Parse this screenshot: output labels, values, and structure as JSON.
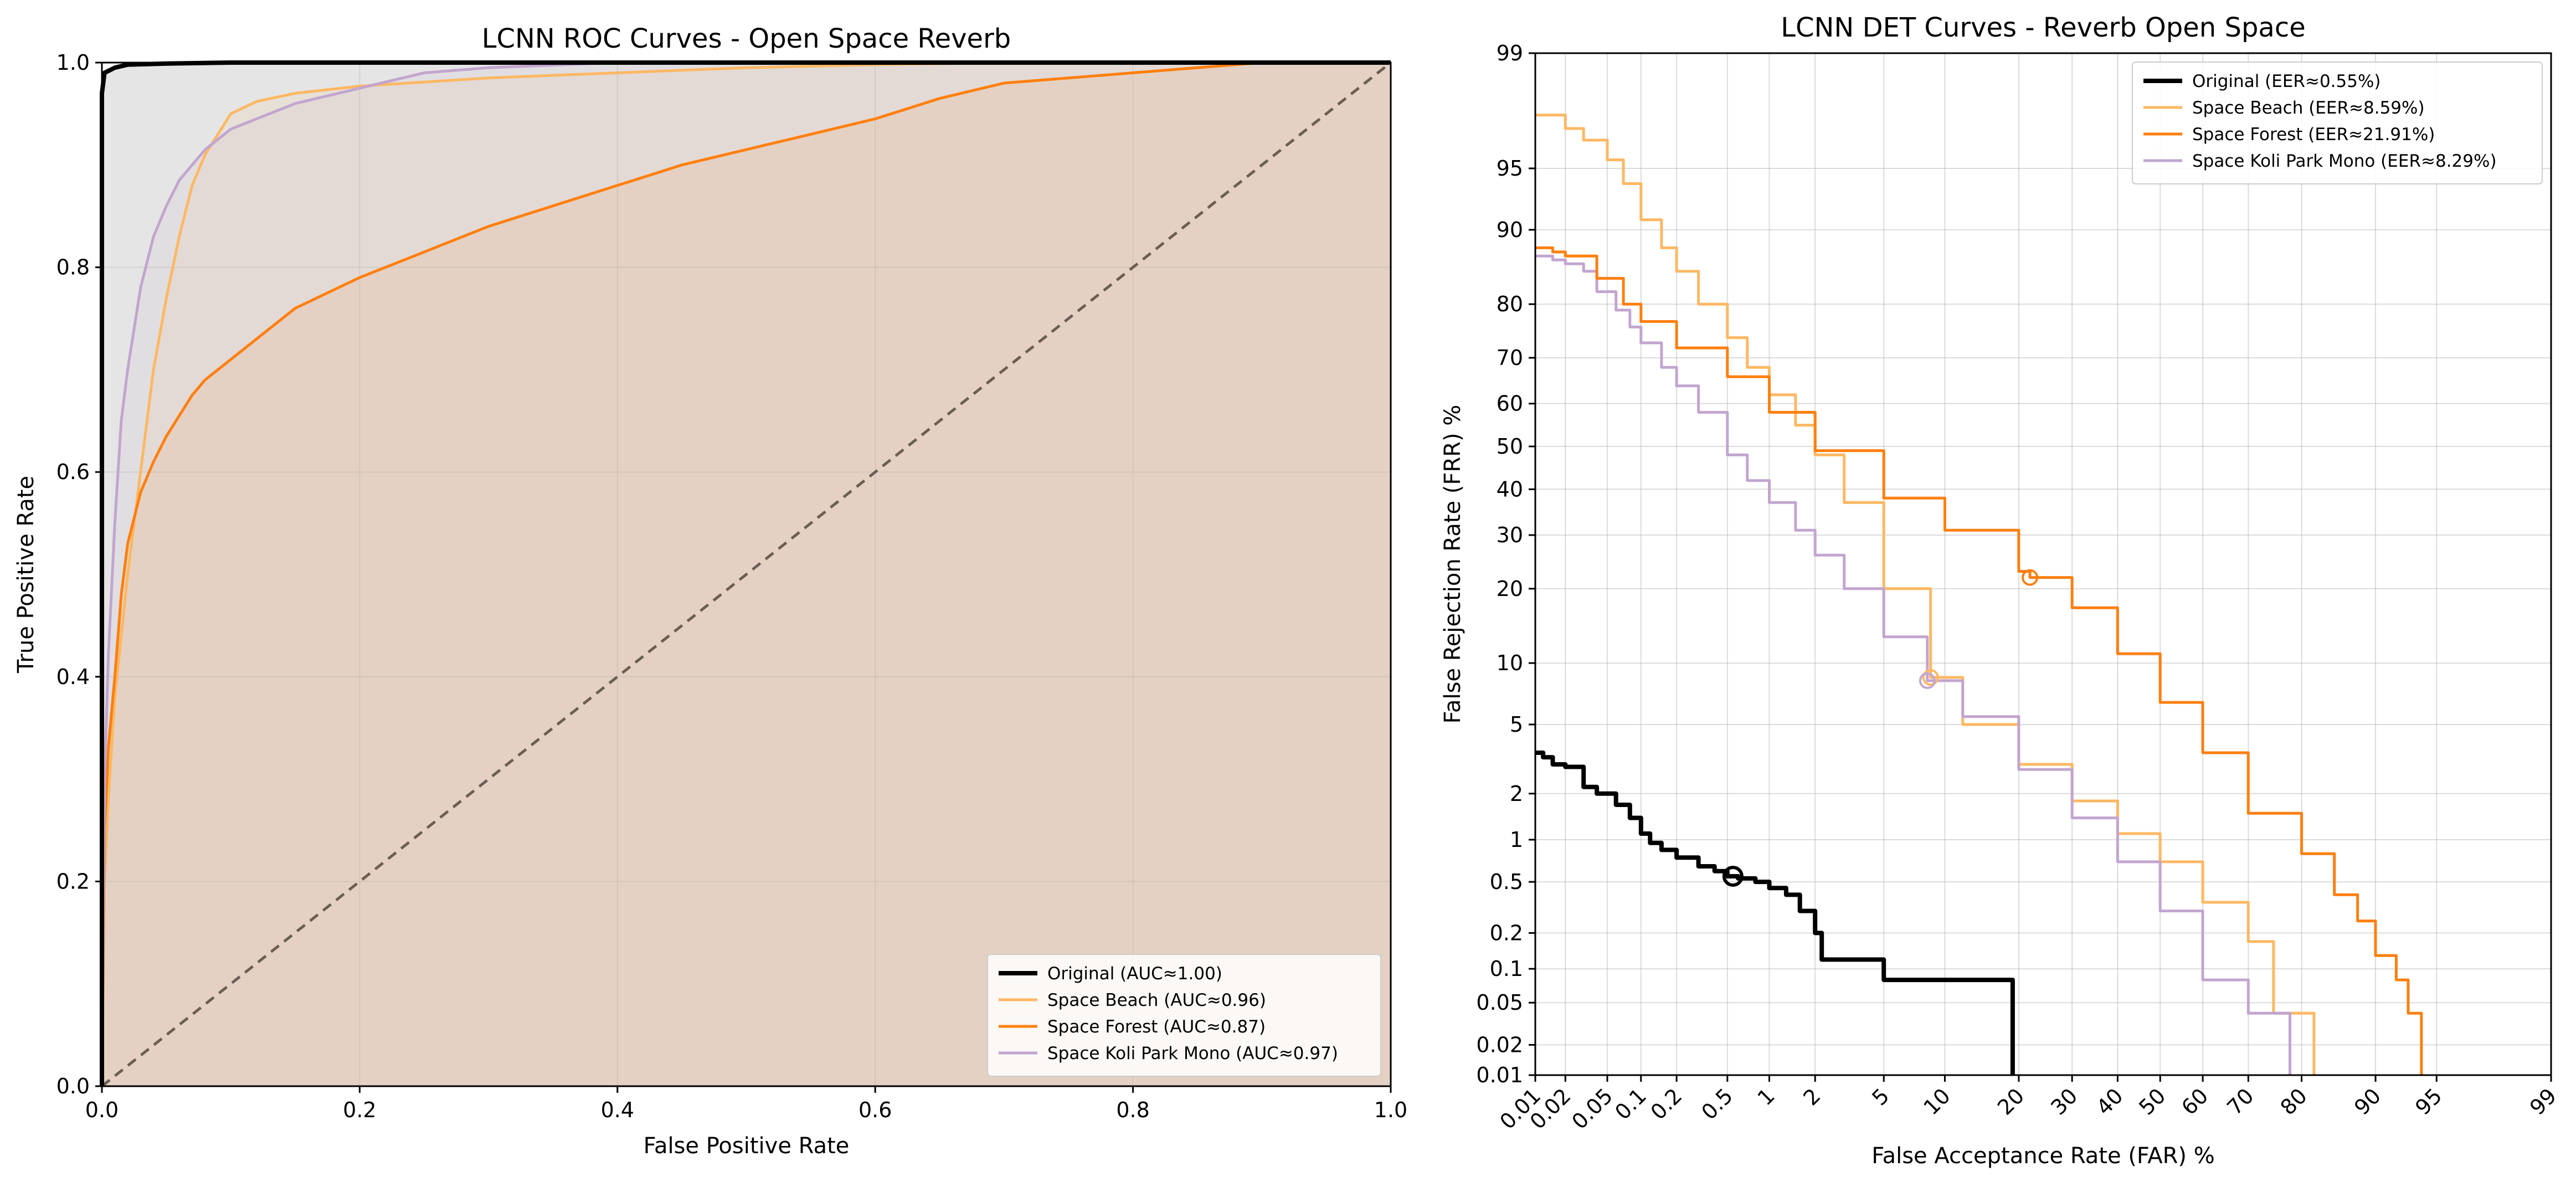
{
  "chart_data": [
    {
      "type": "line",
      "title": "LCNN ROC Curves - Open Space Reverb",
      "xlabel": "False Positive Rate",
      "ylabel": "True Positive Rate",
      "xlim": [
        0,
        1
      ],
      "ylim": [
        0,
        1
      ],
      "xticks": [
        "0.0",
        "0.2",
        "0.4",
        "0.6",
        "0.8",
        "1.0"
      ],
      "yticks": [
        "0.0",
        "0.2",
        "0.4",
        "0.6",
        "0.8",
        "1.0"
      ],
      "grid": true,
      "legend_position": "lower-right",
      "fill_under_curves": true,
      "chance_line": {
        "x": [
          0,
          1
        ],
        "y": [
          0,
          1
        ],
        "color": "#6b5f55",
        "style": "dashed"
      },
      "series": [
        {
          "name": "Original (AUC≈1.00)",
          "color": "#000000",
          "x": [
            0,
            0,
            0.002,
            0.01,
            0.02,
            0.05,
            0.1,
            0.2,
            1
          ],
          "y": [
            0,
            0.97,
            0.99,
            0.995,
            0.998,
            0.999,
            1,
            1,
            1
          ]
        },
        {
          "name": "Space Beach (AUC≈0.96)",
          "color": "#fdb863",
          "x": [
            0,
            0.002,
            0.005,
            0.01,
            0.02,
            0.03,
            0.04,
            0.05,
            0.06,
            0.07,
            0.08,
            0.09,
            0.1,
            0.12,
            0.15,
            0.2,
            0.3,
            0.4,
            0.5,
            0.6,
            0.7,
            1
          ],
          "y": [
            0,
            0.2,
            0.28,
            0.38,
            0.5,
            0.6,
            0.7,
            0.77,
            0.83,
            0.88,
            0.91,
            0.93,
            0.95,
            0.962,
            0.97,
            0.977,
            0.985,
            0.99,
            0.995,
            0.998,
            1,
            1
          ]
        },
        {
          "name": "Space Forest (AUC≈0.87)",
          "color": "#ff7f0e",
          "x": [
            0,
            0.002,
            0.005,
            0.01,
            0.015,
            0.02,
            0.03,
            0.04,
            0.05,
            0.06,
            0.07,
            0.08,
            0.1,
            0.12,
            0.15,
            0.2,
            0.25,
            0.3,
            0.35,
            0.4,
            0.45,
            0.5,
            0.55,
            0.6,
            0.65,
            0.7,
            0.75,
            0.8,
            0.85,
            0.9,
            0.95,
            1
          ],
          "y": [
            0,
            0.25,
            0.33,
            0.4,
            0.48,
            0.53,
            0.58,
            0.61,
            0.635,
            0.655,
            0.675,
            0.69,
            0.71,
            0.73,
            0.76,
            0.79,
            0.815,
            0.84,
            0.86,
            0.88,
            0.9,
            0.915,
            0.93,
            0.945,
            0.965,
            0.98,
            0.985,
            0.99,
            0.995,
            1,
            1,
            1
          ]
        },
        {
          "name": "Space Koli Park Mono (AUC≈0.97)",
          "color": "#c2a5cf",
          "x": [
            0,
            0.002,
            0.005,
            0.01,
            0.015,
            0.02,
            0.03,
            0.04,
            0.05,
            0.06,
            0.07,
            0.08,
            0.1,
            0.12,
            0.15,
            0.2,
            0.25,
            0.3,
            0.4,
            0.5,
            1
          ],
          "y": [
            0,
            0.3,
            0.42,
            0.55,
            0.65,
            0.7,
            0.78,
            0.83,
            0.86,
            0.885,
            0.9,
            0.915,
            0.935,
            0.945,
            0.96,
            0.975,
            0.99,
            0.995,
            1,
            1,
            1
          ]
        }
      ]
    },
    {
      "type": "line",
      "title": "LCNN DET Curves - Reverb Open Space",
      "xlabel": "False Acceptance Rate (FAR) %",
      "ylabel": "False Rejection Rate (FRR) %",
      "scale": "normal-deviate (probit)",
      "xlim": [
        0.01,
        99
      ],
      "ylim": [
        0.01,
        99
      ],
      "xticks": [
        "0.01",
        "0.02",
        "0.05",
        "0.1",
        "0.2",
        "0.5",
        "1",
        "2",
        "5",
        "10",
        "20",
        "30",
        "40",
        "50",
        "60",
        "70",
        "80",
        "90",
        "95",
        "99"
      ],
      "yticks": [
        "0.01",
        "0.02",
        "0.05",
        "0.1",
        "0.2",
        "0.5",
        "1",
        "2",
        "5",
        "10",
        "20",
        "30",
        "40",
        "50",
        "60",
        "70",
        "80",
        "90",
        "95",
        "99"
      ],
      "grid": true,
      "legend_position": "top-right",
      "series": [
        {
          "name": "Original (EER≈0.55%)",
          "color": "#000000",
          "x": [
            0.01,
            0.012,
            0.015,
            0.02,
            0.03,
            0.04,
            0.06,
            0.08,
            0.1,
            0.12,
            0.15,
            0.2,
            0.3,
            0.4,
            0.5,
            0.6,
            0.8,
            1,
            1.3,
            1.6,
            2,
            2.2,
            5,
            10,
            18,
            19,
            19,
            19
          ],
          "y": [
            3.5,
            3.3,
            3.0,
            2.9,
            2.2,
            2.0,
            1.7,
            1.4,
            1.1,
            0.95,
            0.85,
            0.75,
            0.65,
            0.6,
            0.55,
            0.53,
            0.5,
            0.45,
            0.4,
            0.3,
            0.2,
            0.12,
            0.08,
            0.08,
            0.08,
            0.04,
            0.02,
            0.01
          ],
          "eer": {
            "x": 0.55,
            "y": 0.55
          }
        },
        {
          "name": "Space Beach (EER≈8.59%)",
          "color": "#fdb863",
          "x": [
            0.01,
            0.02,
            0.03,
            0.05,
            0.07,
            0.1,
            0.15,
            0.2,
            0.3,
            0.5,
            0.7,
            1,
            1.5,
            2,
            3,
            5,
            8.59,
            12,
            20,
            30,
            40,
            50,
            60,
            70,
            74,
            75,
            75,
            78,
            82,
            82
          ],
          "y": [
            97.5,
            97,
            96.5,
            95.5,
            94,
            91,
            88,
            85,
            80,
            74,
            68,
            62,
            55,
            48,
            37,
            20,
            8.59,
            5,
            3,
            1.8,
            1.1,
            0.7,
            0.35,
            0.17,
            0.17,
            0.1,
            0.04,
            0.04,
            0.04,
            0.01
          ],
          "eer": {
            "x": 8.59,
            "y": 8.59
          }
        },
        {
          "name": "Space Forest (EER≈21.91%)",
          "color": "#ff7f0e",
          "x": [
            0.01,
            0.015,
            0.02,
            0.04,
            0.07,
            0.1,
            0.2,
            0.5,
            1,
            2,
            5,
            10,
            20,
            21.91,
            30,
            40,
            50,
            60,
            70,
            80,
            85,
            88,
            90,
            92,
            93,
            94,
            94
          ],
          "y": [
            88,
            87.5,
            87,
            84,
            80,
            77,
            72,
            66,
            58,
            49,
            38,
            31,
            23,
            21.91,
            17,
            11,
            6.5,
            3.5,
            1.5,
            0.8,
            0.4,
            0.25,
            0.13,
            0.08,
            0.04,
            0.02,
            0.01
          ],
          "eer": {
            "x": 21.91,
            "y": 21.91
          }
        },
        {
          "name": "Space Koli Park Mono (EER≈8.29%)",
          "color": "#c2a5cf",
          "x": [
            0.01,
            0.015,
            0.02,
            0.03,
            0.04,
            0.06,
            0.08,
            0.1,
            0.15,
            0.2,
            0.3,
            0.5,
            0.7,
            1,
            1.5,
            2,
            3,
            5,
            8.29,
            12,
            20,
            30,
            40,
            50,
            60,
            70,
            77,
            78,
            78
          ],
          "y": [
            87,
            86.5,
            86,
            85,
            82,
            79,
            76,
            73,
            68,
            64,
            58,
            48,
            42,
            37,
            31,
            26,
            20,
            13,
            8.29,
            5.5,
            2.8,
            1.4,
            0.7,
            0.3,
            0.08,
            0.04,
            0.04,
            0.02,
            0.01
          ],
          "eer": {
            "x": 8.29,
            "y": 8.29
          }
        }
      ]
    }
  ]
}
